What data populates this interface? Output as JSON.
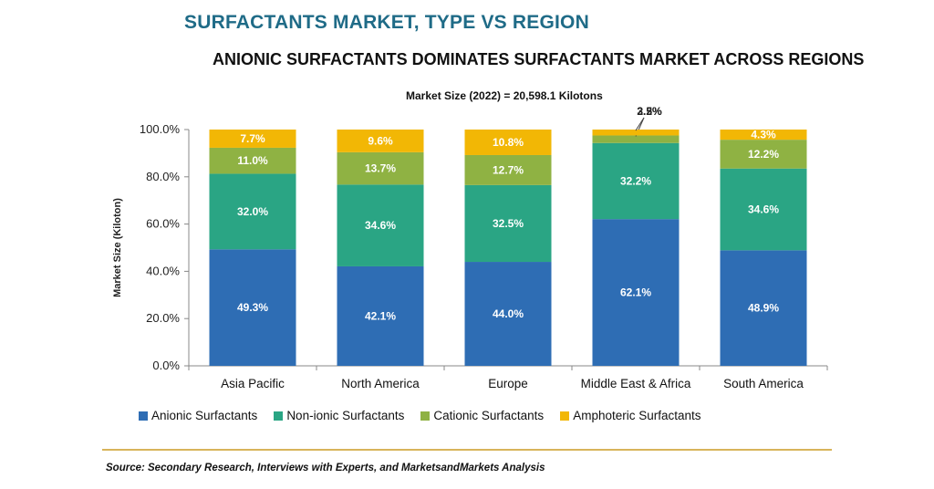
{
  "title": "SURFACTANTS MARKET, TYPE VS REGION",
  "subtitle": "ANIONIC SURFACTANTS DOMINATES SURFACTANTS MARKET ACROSS REGIONS",
  "note": "Market Size (2022) = 20,598.1 Kilotons",
  "source": "Source: Secondary Research, Interviews with Experts, and MarketsandMarkets Analysis",
  "chart_data": {
    "type": "bar",
    "stacked": true,
    "categories": [
      "Asia Pacific",
      "North America",
      "Europe",
      "Middle East & Africa",
      "South America"
    ],
    "series": [
      {
        "name": "Anionic Surfactants",
        "color": "#2e6db4",
        "values": [
          49.3,
          42.1,
          44.0,
          62.1,
          48.9
        ],
        "labels": [
          "49.3%",
          "42.1%",
          "44.0%",
          "62.1%",
          "48.9%"
        ]
      },
      {
        "name": "Non-ionic Surfactants",
        "color": "#2aa584",
        "values": [
          32.0,
          34.6,
          32.5,
          32.2,
          34.6
        ],
        "labels": [
          "32.0%",
          "34.6%",
          "32.5%",
          "32.2%",
          "34.6%"
        ]
      },
      {
        "name": "Cationic Surfactants",
        "color": "#8fb243",
        "values": [
          11.0,
          13.7,
          12.7,
          3.2,
          12.2
        ],
        "labels": [
          "11.0%",
          "13.7%",
          "12.7%",
          "3.2%",
          "12.2%"
        ]
      },
      {
        "name": "Amphoteric Surfactants",
        "color": "#f2b705",
        "values": [
          7.7,
          9.6,
          10.8,
          2.5,
          4.3
        ],
        "labels": [
          "7.7%",
          "9.6%",
          "10.8%",
          "2.5%",
          "4.3%"
        ]
      }
    ],
    "ylabel": "Market Size (Kiloton)",
    "xlabel": "",
    "ylim": [
      0,
      100
    ],
    "yticks": [
      "0.0%",
      "20.0%",
      "40.0%",
      "60.0%",
      "80.0%",
      "100.0%"
    ],
    "grid": false,
    "legend_position": "bottom"
  }
}
